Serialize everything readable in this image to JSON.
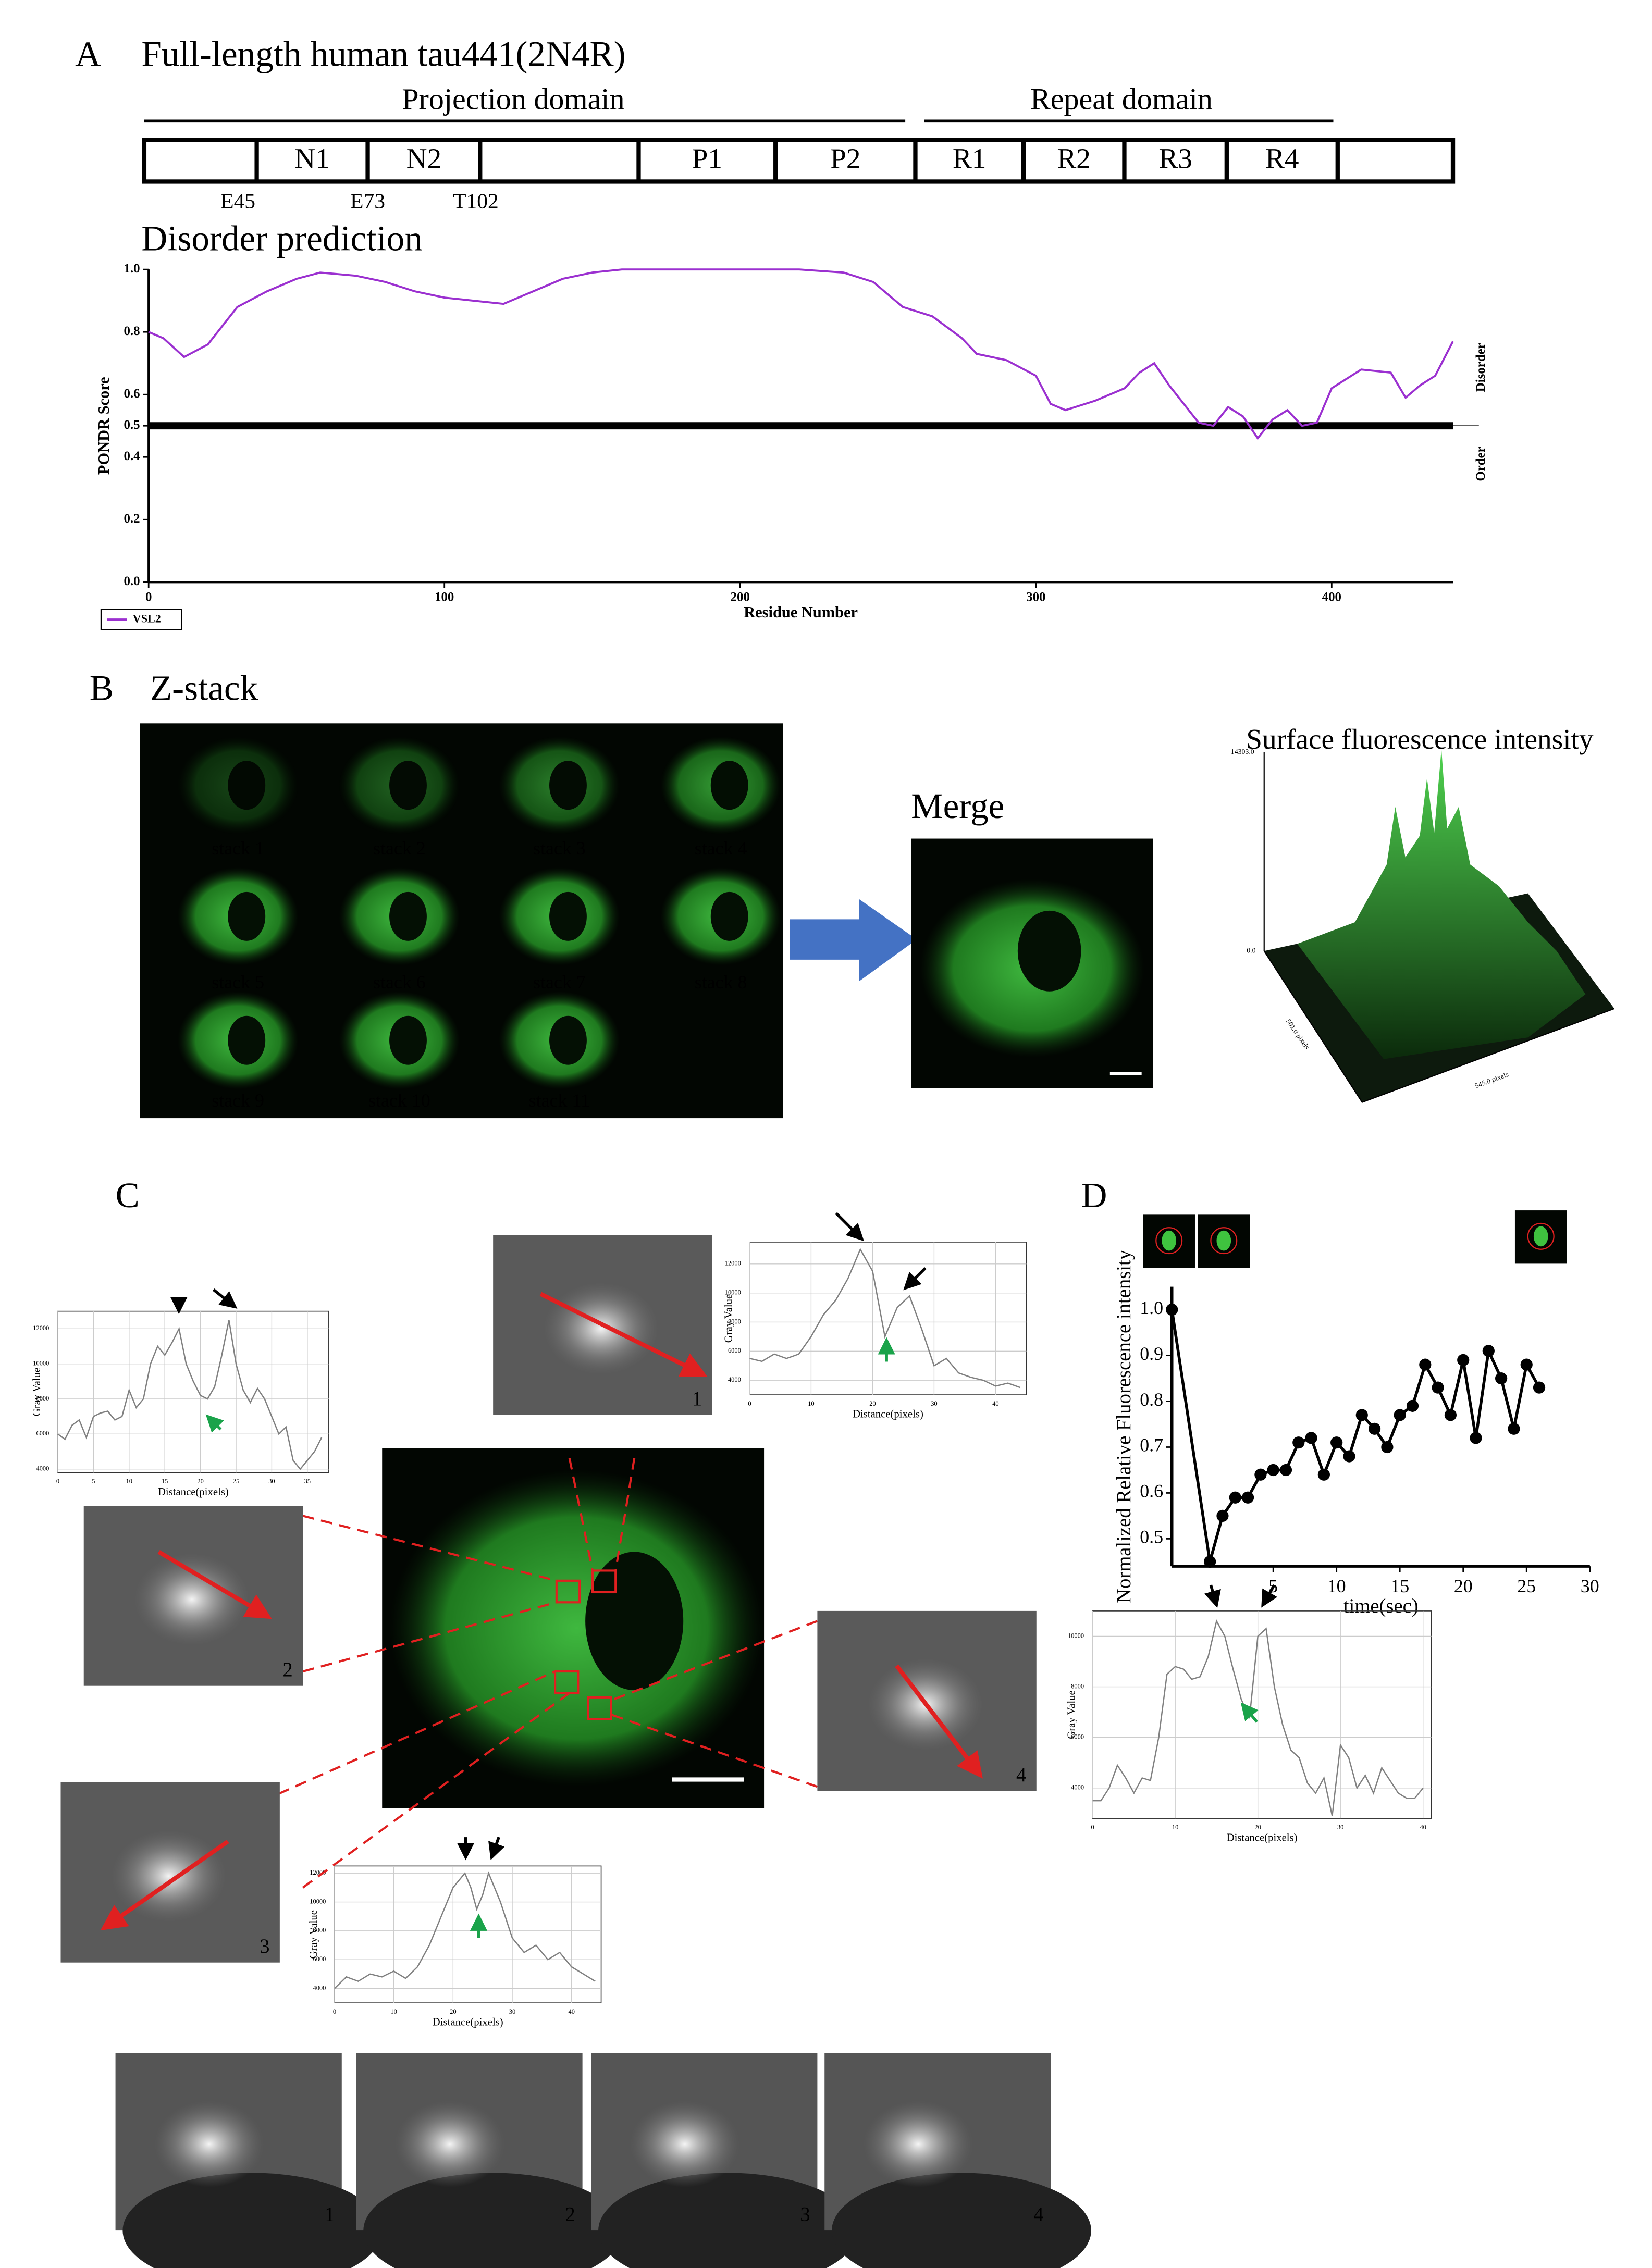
{
  "panel_labels": [
    "A",
    "B",
    "C",
    "D"
  ],
  "domain_map": {
    "title": "Full-length human tau441(2N4R)",
    "regions": [
      "Projection domain",
      "Repeat domain"
    ],
    "segments": [
      "N1",
      "N2",
      "P1",
      "P2",
      "R1",
      "R2",
      "R3",
      "R4"
    ],
    "sites": [
      "E45",
      "E73",
      "T102"
    ]
  },
  "disorder_title": "Disorder prediction",
  "zstack": {
    "title": "Z-stack",
    "stacks": [
      "stack 1",
      "stack 2",
      "stack 3",
      "stack 4",
      "stack 5",
      "stack 6",
      "stack 7",
      "stack 8",
      "stack 9",
      "stack 10",
      "stack 11"
    ],
    "merge": "Merge"
  },
  "surface_plot": {
    "title": "Surface fluorescence intensity",
    "z_labels": [
      "14303.0",
      "0.0"
    ],
    "axis_labels": [
      "501.0 pixels",
      "545.0 pixels"
    ]
  },
  "roi_labels": [
    "1",
    "2",
    "3",
    "4"
  ],
  "chart_data": [
    {
      "type": "line",
      "xlabel": "Residue Number",
      "ylabel": "PONDR Score",
      "side_labels": [
        "Disorder",
        "Order"
      ],
      "threshold": 0.5,
      "legend": "bottom-left",
      "xlim": [
        0,
        441
      ],
      "xticks": [
        0,
        100,
        200,
        300,
        400
      ],
      "ylim": [
        0,
        1
      ],
      "yticks": [
        {
          "value": 0,
          "label": "0.0"
        },
        0.2,
        0.4,
        0.5,
        0.6,
        0.8,
        {
          "value": 1,
          "label": "1.0"
        }
      ],
      "x": [
        0,
        5,
        12,
        20,
        30,
        40,
        50,
        58,
        70,
        80,
        90,
        100,
        110,
        120,
        130,
        140,
        150,
        160,
        180,
        200,
        220,
        235,
        245,
        255,
        265,
        275,
        280,
        290,
        300,
        305,
        310,
        320,
        330,
        335,
        340,
        345,
        350,
        355,
        360,
        365,
        370,
        375,
        380,
        385,
        390,
        395,
        400,
        410,
        420,
        425,
        430,
        435,
        441
      ],
      "series": [
        {
          "name": "VSL2",
          "color": "#9b30d0",
          "values": [
            0.8,
            0.78,
            0.72,
            0.76,
            0.88,
            0.93,
            0.97,
            0.99,
            0.98,
            0.96,
            0.93,
            0.91,
            0.9,
            0.89,
            0.93,
            0.97,
            0.99,
            1.0,
            1.0,
            1.0,
            1.0,
            0.99,
            0.96,
            0.88,
            0.85,
            0.78,
            0.73,
            0.71,
            0.66,
            0.57,
            0.55,
            0.58,
            0.62,
            0.67,
            0.7,
            0.63,
            0.57,
            0.51,
            0.5,
            0.56,
            0.53,
            0.46,
            0.52,
            0.55,
            0.5,
            0.51,
            0.62,
            0.68,
            0.67,
            0.59,
            0.63,
            0.66,
            0.77
          ]
        }
      ]
    },
    {
      "type": "line",
      "markers": true,
      "xlabel": "time(sec)",
      "ylabel": "Normalized Relative Fluorescence intensity",
      "color": "#000000",
      "xlim": [
        -3,
        30
      ],
      "xticks": [
        5,
        10,
        15,
        20,
        25,
        30
      ],
      "ylim": [
        0.44,
        1.05
      ],
      "yticks": [
        0.5,
        0.6,
        0.7,
        0.8,
        0.9,
        {
          "value": 1,
          "label": "1.0"
        }
      ],
      "x": [
        -3,
        0,
        1,
        2,
        3,
        4,
        5,
        6,
        7,
        8,
        9,
        10,
        11,
        12,
        13,
        14,
        15,
        16,
        17,
        18,
        19,
        20,
        21,
        22,
        23,
        24,
        25,
        26
      ],
      "values": [
        1.0,
        0.45,
        0.55,
        0.59,
        0.59,
        0.64,
        0.65,
        0.65,
        0.71,
        0.72,
        0.64,
        0.71,
        0.68,
        0.77,
        0.74,
        0.7,
        0.77,
        0.79,
        0.88,
        0.83,
        0.77,
        0.89,
        0.72,
        0.91,
        0.85,
        0.74,
        0.88,
        0.83
      ]
    },
    {
      "type": "line",
      "grid": true,
      "xlabel": "Distance(pixels)",
      "ylabel": "Gray Value",
      "color": "#808080",
      "xlim": [
        0,
        45
      ],
      "xticks": [
        0,
        10,
        20,
        30,
        40
      ],
      "ylim": [
        3000,
        13500
      ],
      "yticks": [
        4000,
        6000,
        8000,
        10000,
        12000
      ],
      "x": [
        0,
        2,
        4,
        6,
        8,
        10,
        12,
        14,
        16,
        18,
        20,
        22,
        24,
        26,
        28,
        30,
        32,
        34,
        36,
        38,
        40,
        42,
        44
      ],
      "values": [
        5500,
        5300,
        5800,
        5500,
        5800,
        7000,
        8500,
        9500,
        11000,
        13000,
        11500,
        7000,
        9000,
        9800,
        7500,
        5000,
        5500,
        4500,
        4200,
        4000,
        3600,
        3800,
        3500
      ]
    },
    {
      "type": "line",
      "grid": true,
      "xlabel": "Distance(pixels)",
      "ylabel": "Gray Value",
      "color": "#808080",
      "xlim": [
        0,
        38
      ],
      "xticks": [
        0,
        5,
        10,
        15,
        20,
        25,
        30,
        35
      ],
      "ylim": [
        3800,
        13000
      ],
      "yticks": [
        4000,
        6000,
        8000,
        10000,
        12000
      ],
      "x": [
        0,
        1,
        2,
        3,
        4,
        5,
        6,
        7,
        8,
        9,
        10,
        11,
        12,
        13,
        14,
        15,
        16,
        17,
        18,
        19,
        20,
        21,
        22,
        23,
        24,
        25,
        26,
        27,
        28,
        29,
        30,
        31,
        32,
        33,
        34,
        35,
        36,
        37
      ],
      "values": [
        6000,
        5700,
        6500,
        6800,
        5800,
        7000,
        7200,
        7300,
        6800,
        7000,
        8500,
        7500,
        8000,
        10000,
        11000,
        10500,
        11200,
        12000,
        10000,
        9000,
        8200,
        8000,
        8700,
        10500,
        12500,
        10000,
        8500,
        7800,
        8600,
        8000,
        7000,
        6000,
        6400,
        4500,
        4000,
        4500,
        5000,
        5800
      ]
    },
    {
      "type": "line",
      "grid": true,
      "xlabel": "Distance(pixels)",
      "ylabel": "Gray Value",
      "color": "#808080",
      "xlim": [
        0,
        45
      ],
      "xticks": [
        0,
        10,
        20,
        30,
        40
      ],
      "ylim": [
        3000,
        12500
      ],
      "yticks": [
        4000,
        6000,
        8000,
        10000,
        12000
      ],
      "x": [
        0,
        2,
        4,
        6,
        8,
        10,
        12,
        14,
        16,
        18,
        20,
        22,
        23,
        24,
        25,
        26,
        28,
        30,
        32,
        34,
        36,
        38,
        40,
        42,
        44
      ],
      "values": [
        4000,
        4800,
        4500,
        5000,
        4800,
        5200,
        4700,
        5500,
        7000,
        9000,
        11000,
        12000,
        11000,
        9500,
        10500,
        12000,
        10000,
        7500,
        6500,
        7000,
        6000,
        6500,
        5500,
        5000,
        4500
      ]
    },
    {
      "type": "line",
      "grid": true,
      "xlabel": "Distance(pixels)",
      "ylabel": "Gray Value",
      "color": "#808080",
      "xlim": [
        0,
        41
      ],
      "xticks": [
        0,
        10,
        20,
        30,
        40
      ],
      "ylim": [
        2800,
        11000
      ],
      "yticks": [
        4000,
        6000,
        8000,
        10000
      ],
      "x": [
        0,
        1,
        2,
        3,
        4,
        5,
        6,
        7,
        8,
        9,
        10,
        11,
        12,
        13,
        14,
        15,
        16,
        17,
        18,
        19,
        20,
        21,
        22,
        23,
        24,
        25,
        26,
        27,
        28,
        29,
        30,
        31,
        32,
        33,
        34,
        35,
        36,
        37,
        38,
        39,
        40
      ],
      "values": [
        3500,
        3500,
        4000,
        4900,
        4400,
        3800,
        4400,
        4300,
        6000,
        8500,
        8800,
        8700,
        8300,
        8400,
        9200,
        10600,
        10000,
        8700,
        7500,
        6800,
        10000,
        10300,
        8000,
        6500,
        5500,
        5200,
        4200,
        3800,
        4400,
        2900,
        5700,
        5200,
        4000,
        4500,
        3800,
        4800,
        4300,
        3800,
        3600,
        3600,
        4000
      ]
    }
  ]
}
